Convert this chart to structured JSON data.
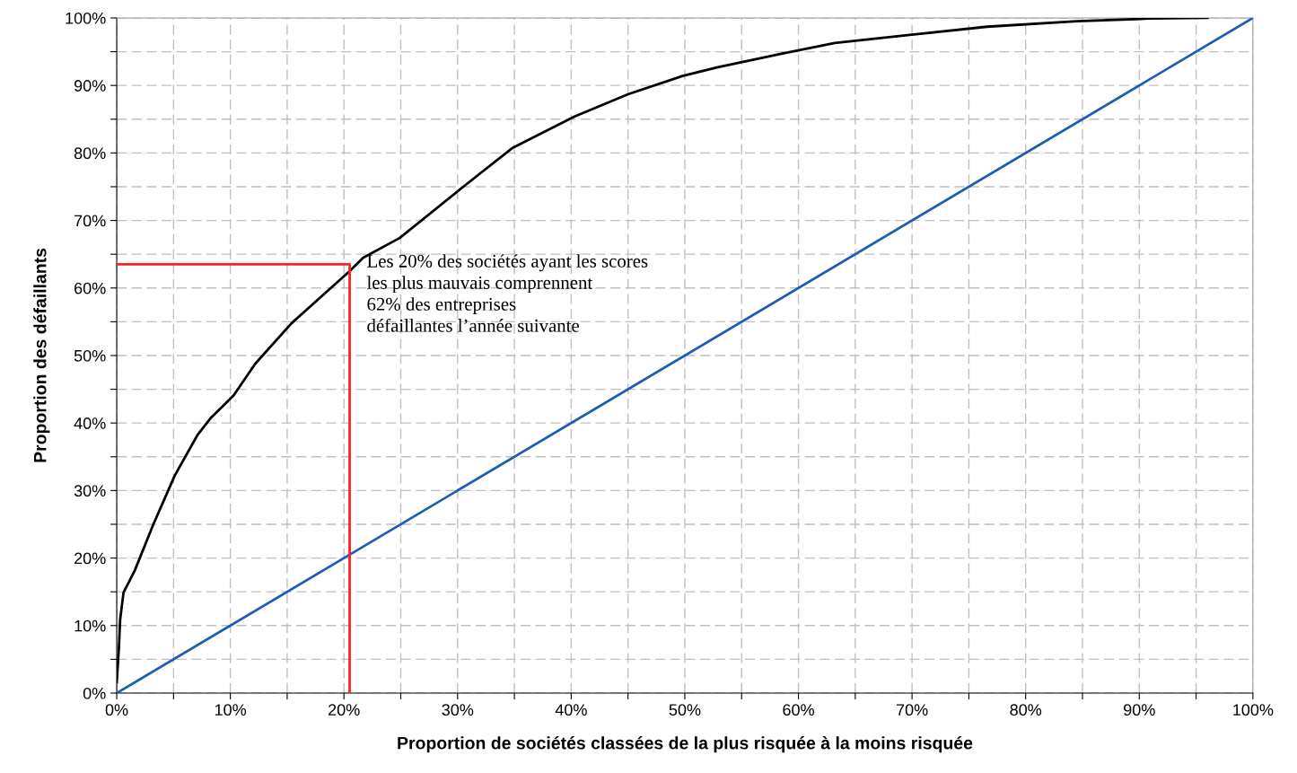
{
  "chart_data": {
    "type": "line",
    "xlabel": "Proportion de sociétés classées de la plus risquée à la moins risquée",
    "ylabel": "Proportion des défaillants",
    "xlim": [
      0,
      100
    ],
    "ylim": [
      0,
      100
    ],
    "xticks": [
      {
        "value": 0,
        "label": "0%"
      },
      {
        "value": 5,
        "label": null
      },
      {
        "value": 10,
        "label": "10%"
      },
      {
        "value": 15,
        "label": null
      },
      {
        "value": 20,
        "label": "20%"
      },
      {
        "value": 25,
        "label": null
      },
      {
        "value": 30,
        "label": "30%"
      },
      {
        "value": 35,
        "label": null
      },
      {
        "value": 40,
        "label": "40%"
      },
      {
        "value": 45,
        "label": null
      },
      {
        "value": 50,
        "label": "50%"
      },
      {
        "value": 55,
        "label": null
      },
      {
        "value": 60,
        "label": "60%"
      },
      {
        "value": 65,
        "label": null
      },
      {
        "value": 70,
        "label": "70%"
      },
      {
        "value": 75,
        "label": null
      },
      {
        "value": 80,
        "label": "80%"
      },
      {
        "value": 85,
        "label": null
      },
      {
        "value": 90,
        "label": "90%"
      },
      {
        "value": 95,
        "label": null
      },
      {
        "value": 100,
        "label": "100%"
      }
    ],
    "yticks": [
      {
        "value": 0,
        "label": "0%"
      },
      {
        "value": 5,
        "label": null
      },
      {
        "value": 10,
        "label": "10%"
      },
      {
        "value": 15,
        "label": null
      },
      {
        "value": 20,
        "label": "20%"
      },
      {
        "value": 25,
        "label": null
      },
      {
        "value": 30,
        "label": "30%"
      },
      {
        "value": 35,
        "label": null
      },
      {
        "value": 40,
        "label": "40%"
      },
      {
        "value": 45,
        "label": null
      },
      {
        "value": 50,
        "label": "50%"
      },
      {
        "value": 55,
        "label": null
      },
      {
        "value": 60,
        "label": "60%"
      },
      {
        "value": 65,
        "label": null
      },
      {
        "value": 70,
        "label": "70%"
      },
      {
        "value": 75,
        "label": null
      },
      {
        "value": 80,
        "label": "80%"
      },
      {
        "value": 85,
        "label": null
      },
      {
        "value": 90,
        "label": "90%"
      },
      {
        "value": 95,
        "label": null
      },
      {
        "value": 100,
        "label": "100%"
      }
    ],
    "grid": true,
    "marker": "none",
    "line_style": "solid",
    "series": [
      {
        "color": "#000000",
        "x": [
          0,
          0.2,
          0.3,
          0.6,
          1.6,
          3.2,
          5.1,
          7.1,
          8.3,
          10.3,
          12.2,
          15.4,
          17,
          20.5,
          21.7,
          24.9,
          30.8,
          34.8,
          40.3,
          45,
          49.8,
          52.9,
          58.5,
          63.2,
          68.7,
          76.6,
          84.5,
          90.8,
          96
        ],
        "values": [
          1.6,
          6.9,
          10.9,
          14.9,
          18.2,
          24.9,
          32.2,
          38.2,
          40.8,
          44.1,
          48.8,
          54.8,
          57.2,
          62.5,
          64.5,
          67.4,
          75.4,
          80.7,
          85.4,
          88.7,
          91.4,
          92.7,
          94.7,
          96.3,
          97.3,
          98.7,
          99.5,
          99.9,
          100
        ]
      },
      {
        "color": "#1f5cb4",
        "x": [
          0,
          100
        ],
        "values": [
          0,
          100
        ]
      },
      {
        "color": "#ff2020",
        "x": [
          0,
          20.5,
          20.5
        ],
        "values": [
          63.5,
          63.5,
          0
        ]
      }
    ],
    "annotations": [
      "Les 20% des sociétés ayant les scores\nles plus mauvais comprennent\n62% des entreprises\ndéfaillantes l’année suivante"
    ]
  }
}
